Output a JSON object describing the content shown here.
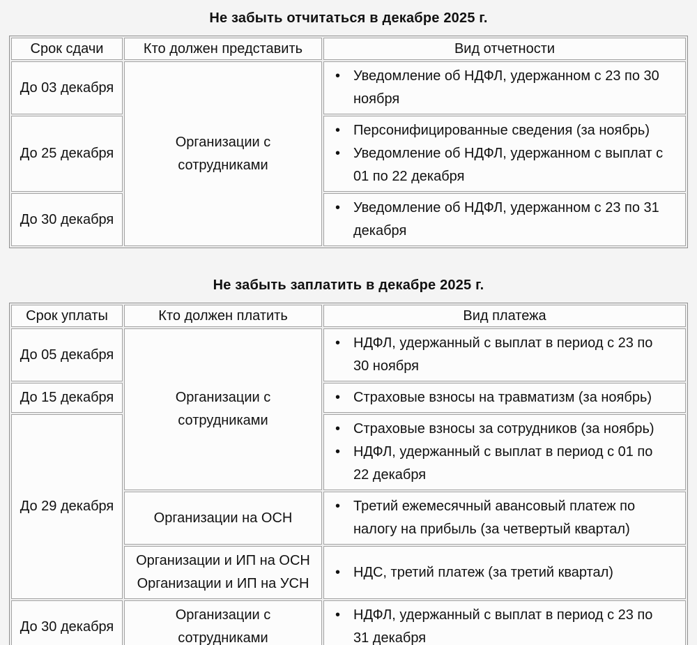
{
  "bullet_char": "•",
  "colors": {
    "page_bg": "#f4f4f4",
    "cell_bg": "#fcfcfc",
    "cell_border": "#a3a3a3",
    "table_border": "#8f8f8f",
    "text": "#111111"
  },
  "report_table": {
    "title": "Не забыть отчитаться в декабре 2025 г.",
    "headers": [
      "Срок сдачи",
      "Кто должен представить",
      "Вид отчетности"
    ],
    "who_merged": "Организации с сотрудниками",
    "rows": [
      {
        "due": "До 03 декабря",
        "items": [
          "Уведомление об НДФЛ, удержанном с 23 по 30 ноября"
        ]
      },
      {
        "due": "До 25 декабря",
        "items": [
          "Персонифицированные сведения (за ноябрь)",
          "Уведомление об НДФЛ, удержанном с выплат с 01 по 22 декабря"
        ]
      },
      {
        "due": "До 30 декабря",
        "items": [
          "Уведомление об НДФЛ, удержанном с 23 по 31 декабря"
        ]
      }
    ]
  },
  "payment_table": {
    "title": "Не забыть заплатить в декабре 2025 г.",
    "headers": [
      "Срок уплаты",
      "Кто должен платить",
      "Вид платежа"
    ],
    "who_merged": "Организации с сотрудниками",
    "rows": [
      {
        "due": "До 05 декабря",
        "items": [
          "НДФЛ, удержанный с выплат в период с 23 по 30 ноября"
        ]
      },
      {
        "due": "До 15 декабря",
        "items": [
          "Страховые взносы на травматизм (за ноябрь)"
        ]
      },
      {
        "due": "До 29 декабря",
        "items": [
          "Страховые взносы за сотрудников (за ноябрь)",
          "НДФЛ, удержанный с выплат в период с 01 по 22 декабря"
        ]
      },
      {
        "who": "Организации на ОСН",
        "items": [
          "Третий ежемесячный авансовый платеж по налогу на прибыль (за четвертый квартал)"
        ]
      },
      {
        "who_lines": [
          "Организации и ИП на ОСН",
          "Организации и ИП на УСН"
        ],
        "items": [
          "НДС, третий платеж (за третий квартал)"
        ]
      },
      {
        "due": "До 30 декабря",
        "who": "Организации с сотрудниками",
        "items": [
          "НДФЛ, удержанный с выплат в период с 23 по 31 декабря"
        ]
      }
    ]
  }
}
